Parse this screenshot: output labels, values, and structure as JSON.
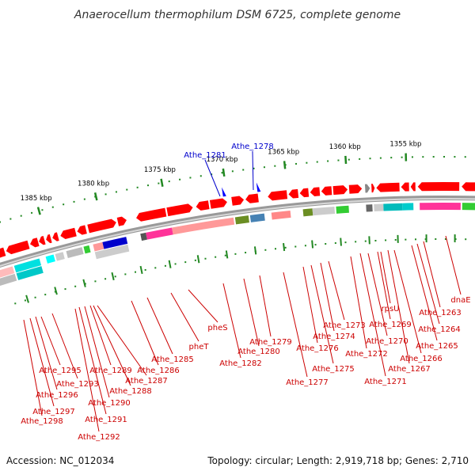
{
  "title": "Anaerocellum thermophilum DSM 6725, complete genome",
  "footer": {
    "accession": "Accession: NC_012034",
    "topology": "Topology: circular; Length: 2,919,718 bp; Genes: 2,710"
  },
  "colors": {
    "outer_label": "#0000cc",
    "inner_label": "#cc0000",
    "backbone": "#999999",
    "tick": "#228822"
  },
  "scale": {
    "ticks": [
      {
        "label": "1385 kbp"
      },
      {
        "label": "1380 kbp"
      },
      {
        "label": "1375 kbp"
      },
      {
        "label": "1370 kbp"
      },
      {
        "label": "1365 kbp"
      },
      {
        "label": "1360 kbp"
      },
      {
        "label": "1355 kbp"
      }
    ]
  },
  "outer_labels": [
    {
      "text": "Athe_1281"
    },
    {
      "text": "Athe_1278"
    }
  ],
  "inner_labels": [
    {
      "text": "Athe_1298"
    },
    {
      "text": "Athe_1297"
    },
    {
      "text": "Athe_1296"
    },
    {
      "text": "Athe_1295"
    },
    {
      "text": "Athe_1293"
    },
    {
      "text": "Athe_1292"
    },
    {
      "text": "Athe_1291"
    },
    {
      "text": "Athe_1290"
    },
    {
      "text": "Athe_1289"
    },
    {
      "text": "Athe_1288"
    },
    {
      "text": "Athe_1287"
    },
    {
      "text": "Athe_1286"
    },
    {
      "text": "Athe_1285"
    },
    {
      "text": "pheT"
    },
    {
      "text": "pheS"
    },
    {
      "text": "Athe_1282"
    },
    {
      "text": "Athe_1280"
    },
    {
      "text": "Athe_1279"
    },
    {
      "text": "Athe_1277"
    },
    {
      "text": "Athe_1276"
    },
    {
      "text": "Athe_1275"
    },
    {
      "text": "Athe_1274"
    },
    {
      "text": "Athe_1273"
    },
    {
      "text": "Athe_1272"
    },
    {
      "text": "Athe_1271"
    },
    {
      "text": "Athe_1270"
    },
    {
      "text": "Athe_1269"
    },
    {
      "text": "rpsU"
    },
    {
      "text": "Athe_1267"
    },
    {
      "text": "Athe_1266"
    },
    {
      "text": "Athe_1265"
    },
    {
      "text": "Athe_1264"
    },
    {
      "text": "Athe_1263"
    },
    {
      "text": "dnaE"
    }
  ]
}
